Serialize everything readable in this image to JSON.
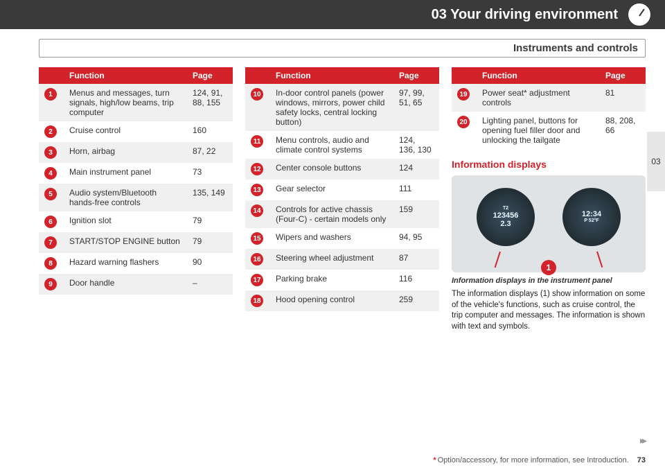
{
  "header": {
    "title": "03 Your driving environment"
  },
  "subheader": "Instruments and controls",
  "sideTab": "03",
  "columns": {
    "headers": {
      "func": "Function",
      "page": "Page"
    },
    "col1": [
      {
        "n": "1",
        "func": "Menus and messages, turn signals, high/low beams, trip computer",
        "page": "124, 91, 88, 155"
      },
      {
        "n": "2",
        "func": "Cruise control",
        "page": "160"
      },
      {
        "n": "3",
        "func": "Horn, airbag",
        "page": "87, 22"
      },
      {
        "n": "4",
        "func": "Main instrument panel",
        "page": "73"
      },
      {
        "n": "5",
        "func": "Audio system/Bluetooth hands-free controls",
        "page": "135, 149"
      },
      {
        "n": "6",
        "func": "Ignition slot",
        "page": "79"
      },
      {
        "n": "7",
        "func": "START/STOP ENGINE button",
        "page": "79"
      },
      {
        "n": "8",
        "func": "Hazard warning flashers",
        "page": "90"
      },
      {
        "n": "9",
        "func": "Door handle",
        "page": "–"
      }
    ],
    "col2": [
      {
        "n": "10",
        "func": "In-door control panels (power windows, mirrors, power child safety locks, central locking button)",
        "page": "97, 99, 51, 65"
      },
      {
        "n": "11",
        "func": "Menu controls, audio and climate control systems",
        "page": "124, 136, 130"
      },
      {
        "n": "12",
        "func": "Center console buttons",
        "page": "124"
      },
      {
        "n": "13",
        "func": "Gear selector",
        "page": "111"
      },
      {
        "n": "14",
        "func": "Controls for active chassis (Four-C) - certain models only",
        "page": "159"
      },
      {
        "n": "15",
        "func": "Wipers and washers",
        "page": "94, 95"
      },
      {
        "n": "16",
        "func": "Steering wheel adjustment",
        "page": "87"
      },
      {
        "n": "17",
        "func": "Parking brake",
        "page": "116"
      },
      {
        "n": "18",
        "func": "Hood opening control",
        "page": "259"
      }
    ],
    "col3": [
      {
        "n": "19",
        "func": "Power seat* adjustment controls",
        "page": "81"
      },
      {
        "n": "20",
        "func": "Lighting panel, buttons for opening fuel filler door and unlocking the tailgate",
        "page": "88, 208, 66"
      }
    ]
  },
  "info": {
    "heading": "Information displays",
    "dial1_top": "123456",
    "dial1_bot": "2.3",
    "dial1_side": "T2",
    "dial2_time": "12:34",
    "dial2_bot": "P  52°F",
    "callout": "1",
    "caption": "Information displays in the instrument panel",
    "body": "The information displays (1) show information on some of the vehicle's functions, such as cruise control, the trip computer and messages. The information is shown with text and symbols."
  },
  "footer": {
    "note": "Option/accessory, for more information, see Introduction.",
    "pageNum": "73"
  }
}
